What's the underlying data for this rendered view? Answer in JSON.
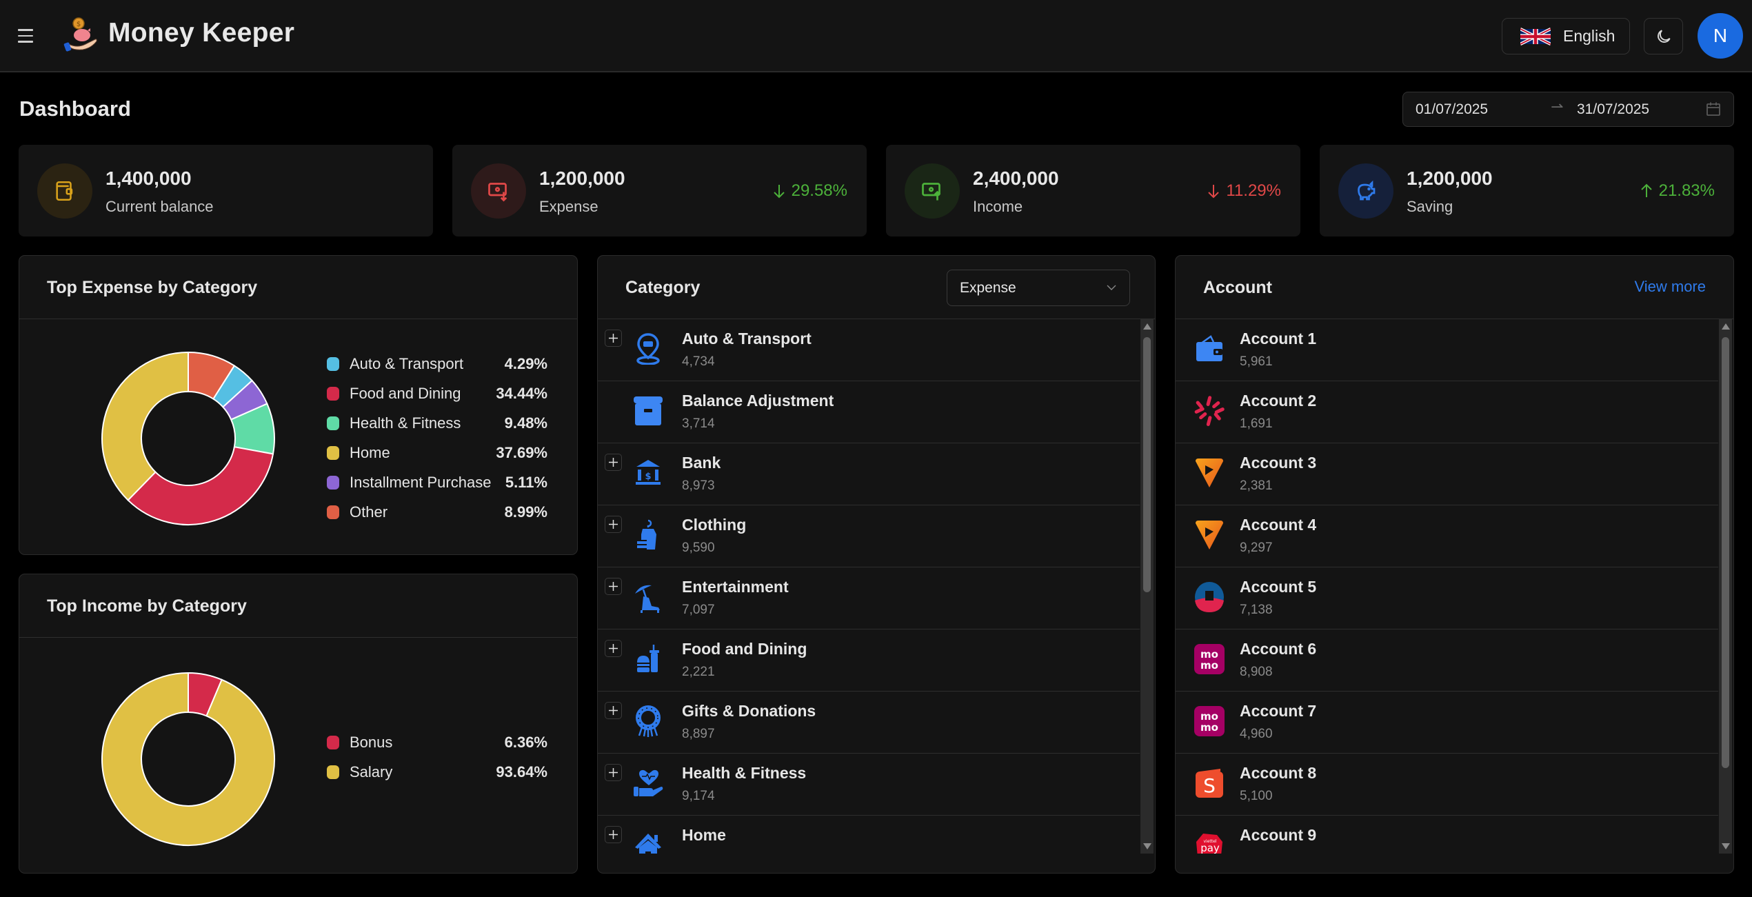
{
  "header": {
    "app_title": "Money Keeper",
    "language": "English",
    "avatar_initial": "N"
  },
  "page": {
    "title": "Dashboard",
    "date_from": "01/07/2025",
    "date_to": "31/07/2025"
  },
  "stats": [
    {
      "value": "1,400,000",
      "label": "Current balance",
      "change": "",
      "direction": "",
      "icon": "wallet-icon",
      "color": "#d9a21b",
      "bg": "#2b2312"
    },
    {
      "value": "1,200,000",
      "label": "Expense",
      "change": "29.58%",
      "direction": "down",
      "change_color": "#4cb13a",
      "icon": "money-out-icon",
      "color": "#e04848",
      "bg": "#2e1a1a"
    },
    {
      "value": "2,400,000",
      "label": "Income",
      "change": "11.29%",
      "direction": "down",
      "change_color": "#e04848",
      "icon": "money-in-icon",
      "color": "#4cb13a",
      "bg": "#1a2616"
    },
    {
      "value": "1,200,000",
      "label": "Saving",
      "change": "21.83%",
      "direction": "up",
      "change_color": "#4cb13a",
      "icon": "piggy-bank-icon",
      "color": "#2f7bec",
      "bg": "#15203a"
    }
  ],
  "expense_panel": {
    "title": "Top Expense by Category"
  },
  "income_panel": {
    "title": "Top Income by Category"
  },
  "chart_data": [
    {
      "type": "pie",
      "title": "Top Expense by Category",
      "donut": true,
      "categories": [
        "Auto & Transport",
        "Food and Dining",
        "Health & Fitness",
        "Home",
        "Installment Purchase",
        "Other"
      ],
      "values": [
        4.29,
        34.44,
        9.48,
        37.69,
        5.11,
        8.99
      ],
      "labels": [
        "4.29%",
        "34.44%",
        "9.48%",
        "37.69%",
        "5.11%",
        "8.99%"
      ],
      "colors": [
        "#55bfe3",
        "#d42a4a",
        "#5fdba6",
        "#e0c044",
        "#8d66d4",
        "#e05f45"
      ],
      "draw_order_clockwise_from_top": [
        "Other",
        "Auto & Transport",
        "Installment Purchase",
        "Health & Fitness",
        "Food and Dining",
        "Home"
      ],
      "legend_position": "right"
    },
    {
      "type": "pie",
      "title": "Top Income by Category",
      "donut": true,
      "categories": [
        "Bonus",
        "Salary"
      ],
      "values": [
        6.36,
        93.64
      ],
      "labels": [
        "6.36%",
        "93.64%"
      ],
      "colors": [
        "#d42a4a",
        "#e0c044"
      ],
      "draw_order_clockwise_from_top": [
        "Bonus",
        "Salary"
      ],
      "legend_position": "right"
    }
  ],
  "category_panel": {
    "title": "Category",
    "filter": "Expense",
    "items": [
      {
        "name": "Auto & Transport",
        "value": "4,734",
        "expandable": true,
        "icon": "car-location-icon"
      },
      {
        "name": "Balance Adjustment",
        "value": "3,714",
        "expandable": false,
        "icon": "archive-box-icon"
      },
      {
        "name": "Bank",
        "value": "8,973",
        "expandable": true,
        "icon": "bank-icon"
      },
      {
        "name": "Clothing",
        "value": "9,590",
        "expandable": true,
        "icon": "clothing-tag-icon"
      },
      {
        "name": "Entertainment",
        "value": "7,097",
        "expandable": true,
        "icon": "beach-umbrella-icon"
      },
      {
        "name": "Food and Dining",
        "value": "2,221",
        "expandable": true,
        "icon": "burger-drink-icon"
      },
      {
        "name": "Gifts & Donations",
        "value": "8,897",
        "expandable": true,
        "icon": "wreath-icon"
      },
      {
        "name": "Health & Fitness",
        "value": "9,174",
        "expandable": true,
        "icon": "heart-hand-icon"
      },
      {
        "name": "Home",
        "value": "",
        "expandable": true,
        "icon": "house-icon"
      }
    ]
  },
  "account_panel": {
    "title": "Account",
    "view_more": "View more",
    "items": [
      {
        "name": "Account 1",
        "value": "5,961",
        "icon": "wallet-logo-icon"
      },
      {
        "name": "Account 2",
        "value": "1,691",
        "icon": "red-star-logo-icon"
      },
      {
        "name": "Account 3",
        "value": "2,381",
        "icon": "orange-triangle-logo-icon"
      },
      {
        "name": "Account 4",
        "value": "9,297",
        "icon": "orange-triangle-logo-icon"
      },
      {
        "name": "Account 5",
        "value": "7,138",
        "icon": "blue-red-circle-logo-icon"
      },
      {
        "name": "Account 6",
        "value": "8,908",
        "icon": "momo-logo-icon"
      },
      {
        "name": "Account 7",
        "value": "4,960",
        "icon": "momo-logo-icon"
      },
      {
        "name": "Account 8",
        "value": "5,100",
        "icon": "shopee-logo-icon"
      },
      {
        "name": "Account 9",
        "value": "",
        "icon": "viettel-pay-logo-icon"
      }
    ]
  },
  "colors": {
    "accent": "#2f7bec",
    "positive": "#4cb13a",
    "negative": "#e04848",
    "panel_bg": "#141414",
    "page_bg": "#000000"
  }
}
